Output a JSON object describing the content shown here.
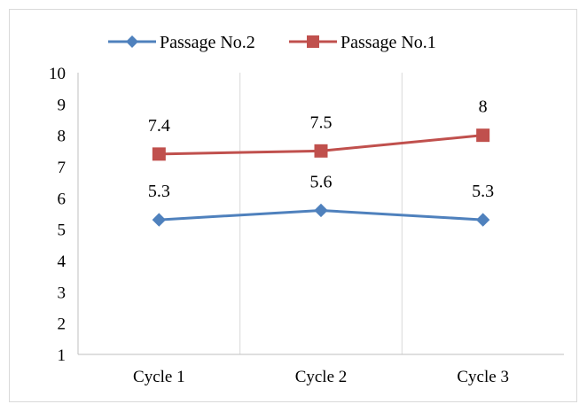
{
  "chart_data": {
    "type": "line",
    "categories": [
      "Cycle 1",
      "Cycle 2",
      "Cycle 3"
    ],
    "series": [
      {
        "name": "Passage No.2",
        "values": [
          5.3,
          5.6,
          5.3
        ],
        "color": "#4f81bd",
        "marker": "diamond"
      },
      {
        "name": "Passage No.1",
        "values": [
          7.4,
          7.5,
          8
        ],
        "color": "#c0504d",
        "marker": "square"
      }
    ],
    "data_labels": [
      [
        "5.3",
        "5.6",
        "5.3"
      ],
      [
        "7.4",
        "7.5",
        "8"
      ]
    ],
    "ylim": [
      1,
      10
    ],
    "yticks": [
      "1",
      "2",
      "3",
      "4",
      "5",
      "6",
      "7",
      "8",
      "9",
      "10"
    ],
    "grid": "vertical-category-separators",
    "legend_position": "top"
  }
}
